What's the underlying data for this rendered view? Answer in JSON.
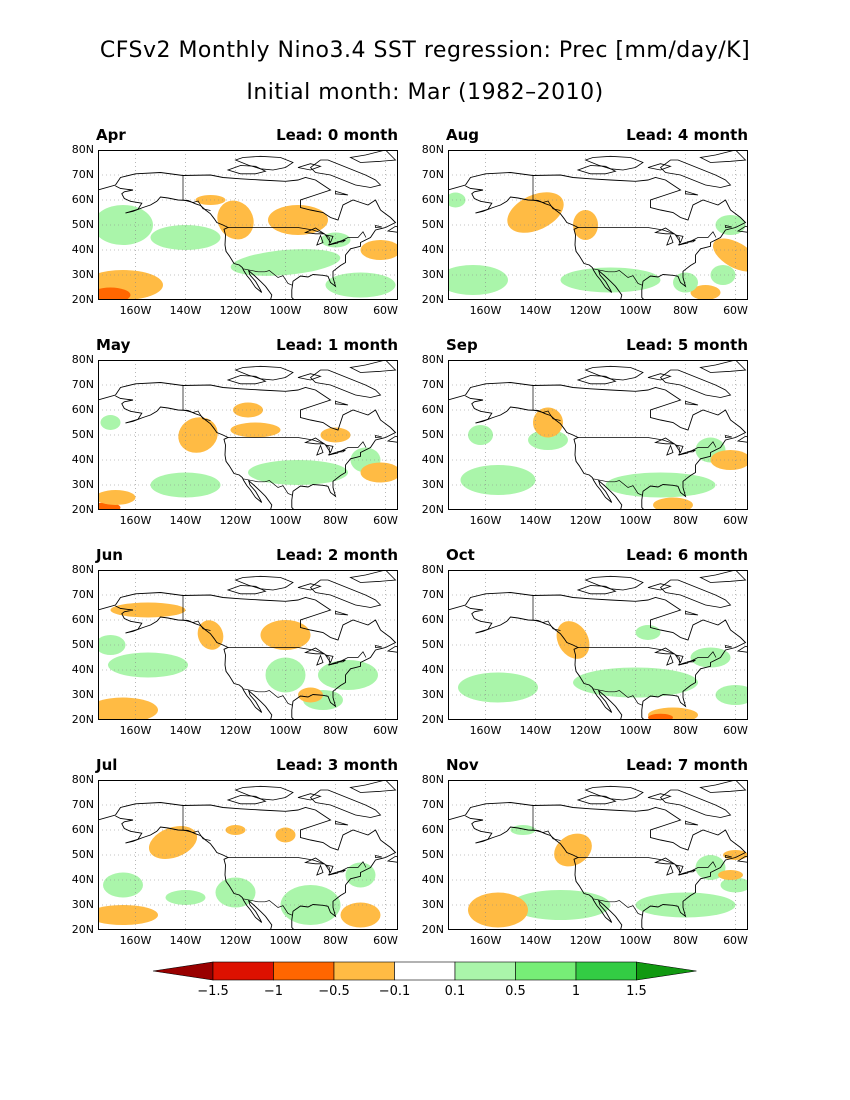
{
  "title_line1": "CFSv2 Monthly Nino3.4 SST regression: Prec [mm/day/K]",
  "title_line2": "Initial month: Mar (1982–2010)",
  "panels": [
    {
      "month": "Apr",
      "lead": "Lead: 0 month"
    },
    {
      "month": "Aug",
      "lead": "Lead: 4 month"
    },
    {
      "month": "May",
      "lead": "Lead: 1 month"
    },
    {
      "month": "Sep",
      "lead": "Lead: 5 month"
    },
    {
      "month": "Jun",
      "lead": "Lead: 2 month"
    },
    {
      "month": "Oct",
      "lead": "Lead: 6 month"
    },
    {
      "month": "Jul",
      "lead": "Lead: 3 month"
    },
    {
      "month": "Nov",
      "lead": "Lead: 7 month"
    }
  ],
  "lat_labels": [
    "80N",
    "70N",
    "60N",
    "50N",
    "40N",
    "30N",
    "20N"
  ],
  "lon_labels": [
    "160W",
    "140W",
    "120W",
    "100W",
    "80W",
    "60W"
  ],
  "colorbar": {
    "labels": [
      "−1.5",
      "−1",
      "−0.5",
      "−0.1",
      "0.1",
      "0.5",
      "1",
      "1.5"
    ],
    "colors": [
      "#990000",
      "#dd1100",
      "#ff6600",
      "#ffbb44",
      "#ffffff",
      "#aaf5aa",
      "#77ee77",
      "#33cc44",
      "#119911"
    ]
  },
  "colors": {
    "dry_light": "#ffbb44",
    "dry_mid": "#ff6600",
    "wet_light": "#aaf5aa",
    "wet_mid": "#77ee77"
  }
}
